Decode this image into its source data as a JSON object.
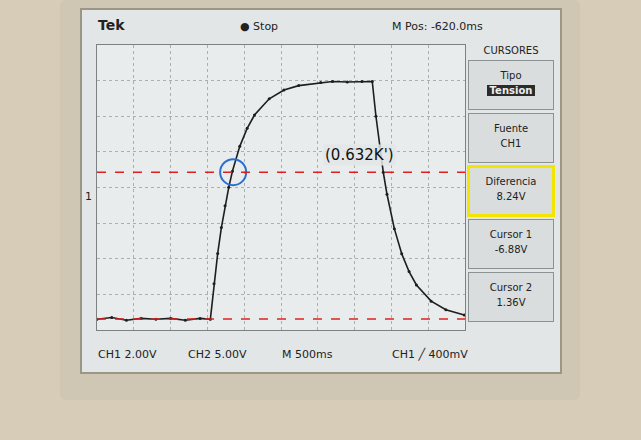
{
  "chart_data": {
    "type": "line",
    "color": "#1e1e1e",
    "marker": "circle",
    "line_style": "solid",
    "x": [
      0,
      200,
      400,
      600,
      800,
      1000,
      1200,
      1400,
      1540,
      1590,
      1640,
      1690,
      1740,
      1790,
      1840,
      1940,
      2040,
      2140,
      2340,
      2540,
      2740,
      3040,
      3200,
      3400,
      3600,
      3740,
      3790,
      3840,
      3890,
      3940,
      4040,
      4140,
      4240,
      4340,
      4540,
      4740,
      4990
    ],
    "values": [
      -6.9,
      -6.8,
      -6.95,
      -6.85,
      -6.9,
      -6.85,
      -6.95,
      -6.85,
      -6.9,
      -4.9,
      -3.2,
      -1.75,
      -0.52,
      0.51,
      1.41,
      2.81,
      3.82,
      4.57,
      5.48,
      5.97,
      6.22,
      6.39,
      6.45,
      6.42,
      6.45,
      6.45,
      4.5,
      2.8,
      1.35,
      0.12,
      -1.81,
      -3.22,
      -4.22,
      -4.97,
      -5.88,
      -6.36,
      -6.66
    ],
    "xlim": [
      0,
      5000
    ],
    "xticks": [
      0,
      500,
      1000,
      1500,
      2000,
      2500,
      3000,
      3500,
      4000,
      4500,
      5000
    ],
    "ylim": [
      -7.5,
      8.5
    ],
    "yticks": [
      -7.5,
      -5.5,
      -3.5,
      -1.5,
      0.5,
      2.5,
      4.5,
      6.5,
      8.5
    ],
    "grid": true,
    "tick_labels": false,
    "cursors": [
      {
        "value": -6.88,
        "color": "#e02020",
        "line_style": "dash"
      },
      {
        "value": 1.36,
        "color": "#e02020",
        "line_style": "dash"
      }
    ],
    "annotations": [
      {
        "text": "(0.632K')",
        "x": 3570,
        "y": 2.3
      }
    ],
    "highlight": {
      "x": 1850,
      "y": 1.36,
      "color": "#2a6fd0",
      "marker": "circle-open"
    },
    "channel_marker": {
      "text": "1",
      "y": 0
    },
    "screen": {
      "header": [
        "Tek",
        "● Stop",
        "M Pos: -620.0ms"
      ],
      "footer": [
        "CH1 2.00V",
        "CH2 5.00V",
        "M 500ms",
        "CH1 ╱ 400mV"
      ],
      "menu": {
        "title": "CURSORES",
        "items": [
          {
            "label": "Tipo",
            "value": "Tension"
          },
          {
            "label": "Fuente",
            "value": "CH1"
          },
          {
            "label": "Diferencia",
            "value": "8.24V"
          },
          {
            "label": "Cursor 1",
            "value": "-6.88V"
          },
          {
            "label": "Cursor 2",
            "value": "1.36V"
          }
        ]
      }
    }
  }
}
